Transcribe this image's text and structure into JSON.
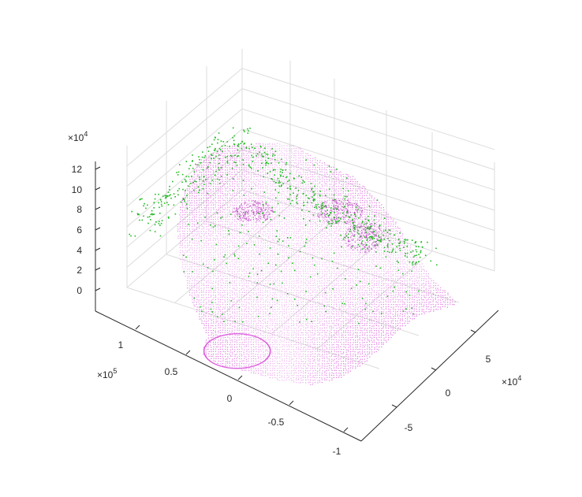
{
  "chart_data": {
    "type": "scatter3d",
    "title": "",
    "view": "3D perspective, rotated",
    "grid": true,
    "colors": {
      "mesh": "#d955d9",
      "landmarks": "#22bb22",
      "axes": "#262626",
      "grid": "#dcdcdc"
    },
    "axes": {
      "x": {
        "multiplier": "×10",
        "exponent": "4",
        "ticks": [
          "-5",
          "0",
          "5"
        ],
        "range": [
          -8,
          8
        ]
      },
      "y": {
        "multiplier": "×10",
        "exponent": "5",
        "ticks": [
          "-1",
          "-0.5",
          "0",
          "0.5",
          "1"
        ],
        "range": [
          -1.1,
          1.3
        ]
      },
      "z": {
        "multiplier": "×10",
        "exponent": "4",
        "ticks": [
          "0",
          "2",
          "4",
          "6",
          "8",
          "10",
          "12"
        ],
        "range": [
          -1,
          13
        ]
      }
    },
    "series": [
      {
        "marker": "point",
        "color": "#d955d9",
        "description_count": "dense"
      },
      {
        "marker": "point",
        "color": "#22bb22",
        "description_count": "sparse"
      }
    ]
  }
}
